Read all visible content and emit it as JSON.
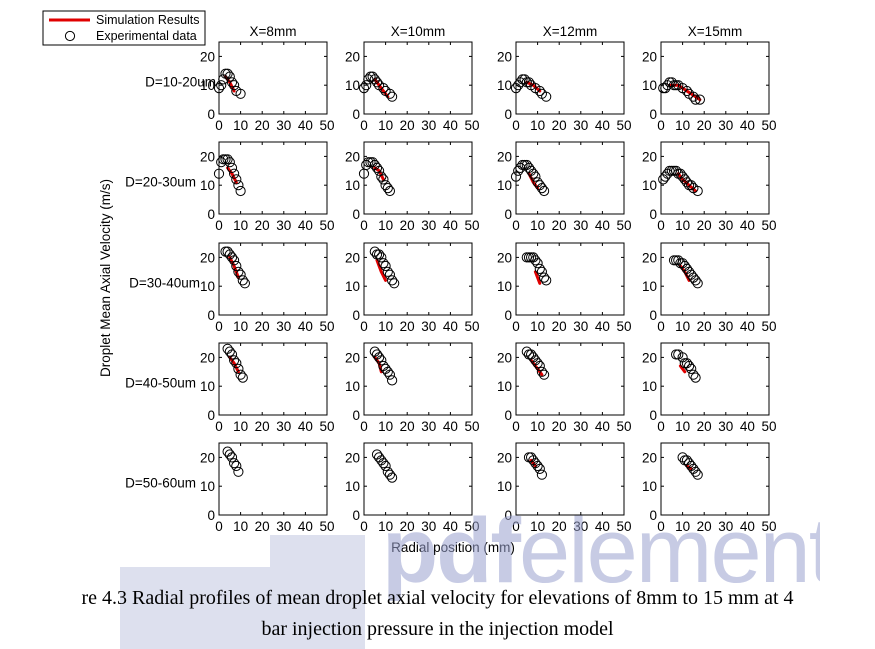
{
  "chart_data": {
    "type": "scatter",
    "title": "",
    "xlabel": "Radial position (mm)",
    "ylabel": "Droplet Mean Axial Velocity (m/s)",
    "xlim": [
      0,
      50
    ],
    "xticks": [
      0,
      10,
      20,
      30,
      40,
      50
    ],
    "column_headers": [
      "X=8mm",
      "X=10mm",
      "X=12mm",
      "X=15mm"
    ],
    "row_labels": [
      "D=10-20um",
      "D=20-30um",
      "D=30-40um",
      "D=40-50um",
      "D=50-60um"
    ],
    "ylims": [
      [
        0,
        25
      ],
      [
        0,
        25
      ],
      [
        0,
        25
      ],
      [
        0,
        25
      ],
      [
        0,
        25
      ]
    ],
    "yticks": [
      [
        0,
        10,
        20
      ],
      [
        0,
        10,
        20
      ],
      [
        0,
        10,
        20
      ],
      [
        0,
        10,
        20
      ],
      [
        0,
        10,
        20
      ]
    ],
    "legend": {
      "position": "top-left",
      "entries": [
        {
          "label": "Simulation Results",
          "style": "line",
          "color": "#e00000"
        },
        {
          "label": "Experimental data",
          "style": "circle",
          "color": "#000000"
        }
      ]
    },
    "panels": [
      [
        {
          "exp": [
            [
              0,
              9
            ],
            [
              1,
              10
            ],
            [
              2,
              12
            ],
            [
              3,
              14
            ],
            [
              4,
              14
            ],
            [
              5,
              13
            ],
            [
              6,
              11
            ],
            [
              7,
              10
            ],
            [
              8,
              8
            ],
            [
              10,
              7
            ]
          ],
          "sim": [
            [
              3,
              13
            ],
            [
              5,
              11
            ],
            [
              7,
              8
            ]
          ]
        },
        {
          "exp": [
            [
              0,
              9
            ],
            [
              1,
              10
            ],
            [
              2,
              12
            ],
            [
              3,
              13
            ],
            [
              4,
              13
            ],
            [
              5,
              12
            ],
            [
              6,
              11
            ],
            [
              7,
              10
            ],
            [
              9,
              9
            ],
            [
              10,
              8
            ],
            [
              12,
              7
            ],
            [
              13,
              6
            ]
          ],
          "sim": [
            [
              5,
              12
            ],
            [
              7,
              10
            ],
            [
              9,
              8
            ],
            [
              11,
              6
            ]
          ]
        },
        {
          "exp": [
            [
              0,
              9
            ],
            [
              1,
              10
            ],
            [
              2,
              11
            ],
            [
              3,
              12
            ],
            [
              4,
              12
            ],
            [
              5,
              11
            ],
            [
              6,
              11
            ],
            [
              7,
              10
            ],
            [
              9,
              9
            ],
            [
              11,
              8
            ],
            [
              12,
              7
            ],
            [
              14,
              6
            ]
          ],
          "sim": [
            [
              5,
              11
            ],
            [
              8,
              10
            ],
            [
              11,
              8
            ]
          ]
        },
        {
          "exp": [
            [
              1,
              9
            ],
            [
              2,
              9
            ],
            [
              3,
              10
            ],
            [
              4,
              11
            ],
            [
              5,
              11
            ],
            [
              6,
              10
            ],
            [
              7,
              10
            ],
            [
              8,
              10
            ],
            [
              10,
              9
            ],
            [
              12,
              8
            ],
            [
              13,
              7
            ],
            [
              15,
              6
            ],
            [
              16,
              5
            ],
            [
              18,
              5
            ]
          ],
          "sim": [
            [
              4,
              10
            ],
            [
              8,
              10
            ],
            [
              12,
              8
            ],
            [
              16,
              6
            ],
            [
              18,
              5
            ]
          ]
        }
      ],
      [
        {
          "exp": [
            [
              0,
              14
            ],
            [
              1,
              18
            ],
            [
              2,
              19
            ],
            [
              3,
              19
            ],
            [
              4,
              19
            ],
            [
              5,
              18
            ],
            [
              6,
              16
            ],
            [
              7,
              14
            ],
            [
              8,
              12
            ],
            [
              9,
              10
            ],
            [
              10,
              8
            ]
          ],
          "sim": [
            [
              4,
              16
            ],
            [
              6,
              14
            ],
            [
              8,
              11
            ]
          ]
        },
        {
          "exp": [
            [
              0,
              14
            ],
            [
              1,
              17
            ],
            [
              2,
              18
            ],
            [
              3,
              18
            ],
            [
              4,
              18
            ],
            [
              5,
              17
            ],
            [
              6,
              16
            ],
            [
              7,
              15
            ],
            [
              8,
              13
            ],
            [
              9,
              12
            ],
            [
              10,
              10
            ],
            [
              11,
              9
            ],
            [
              12,
              8
            ]
          ],
          "sim": [
            [
              5,
              16
            ],
            [
              7,
              15
            ],
            [
              9,
              12
            ]
          ]
        },
        {
          "exp": [
            [
              0,
              13
            ],
            [
              1,
              15
            ],
            [
              2,
              16
            ],
            [
              3,
              17
            ],
            [
              4,
              17
            ],
            [
              5,
              17
            ],
            [
              6,
              16
            ],
            [
              7,
              15
            ],
            [
              8,
              14
            ],
            [
              9,
              13
            ],
            [
              10,
              11
            ],
            [
              11,
              10
            ],
            [
              12,
              9
            ],
            [
              13,
              8
            ]
          ],
          "sim": [
            [
              6,
              14
            ],
            [
              8,
              11
            ],
            [
              10,
              9
            ]
          ]
        },
        {
          "exp": [
            [
              1,
              12
            ],
            [
              2,
              13
            ],
            [
              3,
              14
            ],
            [
              4,
              15
            ],
            [
              5,
              15
            ],
            [
              6,
              15
            ],
            [
              7,
              15
            ],
            [
              8,
              14
            ],
            [
              9,
              14
            ],
            [
              10,
              13
            ],
            [
              11,
              12
            ],
            [
              12,
              11
            ],
            [
              13,
              10
            ],
            [
              14,
              10
            ],
            [
              15,
              9
            ],
            [
              17,
              8
            ]
          ],
          "sim": [
            [
              8,
              14
            ],
            [
              10,
              12
            ],
            [
              13,
              10
            ],
            [
              16,
              8
            ]
          ]
        }
      ],
      [
        {
          "exp": [
            [
              3,
              22
            ],
            [
              4,
              22
            ],
            [
              5,
              21
            ],
            [
              6,
              20
            ],
            [
              7,
              19
            ],
            [
              8,
              17
            ],
            [
              9,
              15
            ],
            [
              10,
              14
            ],
            [
              11,
              12
            ],
            [
              12,
              11
            ]
          ],
          "sim": [
            [
              5,
              20
            ],
            [
              7,
              17
            ],
            [
              9,
              13
            ]
          ]
        },
        {
          "exp": [
            [
              5,
              22
            ],
            [
              6,
              21
            ],
            [
              7,
              21
            ],
            [
              8,
              20
            ],
            [
              9,
              18
            ],
            [
              10,
              17
            ],
            [
              11,
              15
            ],
            [
              12,
              14
            ],
            [
              13,
              12
            ],
            [
              14,
              11
            ]
          ],
          "sim": [
            [
              6,
              19
            ],
            [
              8,
              15
            ],
            [
              10,
              12
            ]
          ]
        },
        {
          "exp": [
            [
              5,
              20
            ],
            [
              6,
              20
            ],
            [
              7,
              20
            ],
            [
              8,
              20
            ],
            [
              9,
              19
            ],
            [
              10,
              18
            ],
            [
              11,
              16
            ],
            [
              12,
              15
            ],
            [
              13,
              13
            ],
            [
              14,
              12
            ]
          ],
          "sim": [
            [
              9,
              15
            ],
            [
              11,
              11
            ]
          ]
        },
        {
          "exp": [
            [
              6,
              19
            ],
            [
              7,
              19
            ],
            [
              8,
              19
            ],
            [
              9,
              18
            ],
            [
              10,
              18
            ],
            [
              11,
              17
            ],
            [
              12,
              16
            ],
            [
              13,
              15
            ],
            [
              14,
              14
            ],
            [
              15,
              13
            ],
            [
              16,
              12
            ],
            [
              17,
              11
            ]
          ],
          "sim": [
            [
              9,
              17
            ],
            [
              11,
              15
            ],
            [
              13,
              12
            ]
          ]
        }
      ],
      [
        {
          "exp": [
            [
              4,
              23
            ],
            [
              5,
              22
            ],
            [
              6,
              21
            ],
            [
              7,
              19
            ],
            [
              8,
              18
            ],
            [
              9,
              16
            ],
            [
              10,
              14
            ],
            [
              11,
              13
            ]
          ],
          "sim": [
            [
              5,
              20
            ],
            [
              7,
              18
            ],
            [
              9,
              15
            ]
          ]
        },
        {
          "exp": [
            [
              5,
              22
            ],
            [
              6,
              21
            ],
            [
              7,
              20
            ],
            [
              8,
              19
            ],
            [
              9,
              17
            ],
            [
              10,
              16
            ],
            [
              11,
              15
            ],
            [
              12,
              14
            ],
            [
              13,
              12
            ]
          ],
          "sim": [
            [
              5,
              20
            ],
            [
              7,
              18
            ],
            [
              8,
              15
            ]
          ]
        },
        {
          "exp": [
            [
              5,
              22
            ],
            [
              6,
              21
            ],
            [
              7,
              21
            ],
            [
              8,
              20
            ],
            [
              9,
              19
            ],
            [
              10,
              18
            ],
            [
              11,
              17
            ],
            [
              12,
              15
            ],
            [
              13,
              14
            ]
          ],
          "sim": [
            [
              7,
              19
            ],
            [
              10,
              16
            ],
            [
              12,
              14
            ]
          ]
        },
        {
          "exp": [
            [
              7,
              21
            ],
            [
              8,
              21
            ],
            [
              10,
              20
            ],
            [
              11,
              18
            ],
            [
              12,
              18
            ],
            [
              13,
              17
            ],
            [
              14,
              16
            ],
            [
              15,
              14
            ],
            [
              16,
              13
            ]
          ],
          "sim": [
            [
              9,
              17
            ],
            [
              11,
              15
            ]
          ]
        }
      ],
      [
        {
          "exp": [
            [
              4,
              22
            ],
            [
              5,
              21
            ],
            [
              6,
              20
            ],
            [
              7,
              18
            ],
            [
              8,
              17
            ],
            [
              9,
              15
            ]
          ],
          "sim": []
        },
        {
          "exp": [
            [
              6,
              21
            ],
            [
              7,
              20
            ],
            [
              8,
              19
            ],
            [
              9,
              18
            ],
            [
              10,
              17
            ],
            [
              11,
              15
            ],
            [
              12,
              14
            ],
            [
              13,
              13
            ]
          ],
          "sim": []
        },
        {
          "exp": [
            [
              6,
              20
            ],
            [
              7,
              20
            ],
            [
              8,
              19
            ],
            [
              9,
              18
            ],
            [
              10,
              17
            ],
            [
              11,
              16
            ],
            [
              12,
              14
            ]
          ],
          "sim": [
            [
              7,
              19
            ],
            [
              9,
              17
            ]
          ]
        },
        {
          "exp": [
            [
              10,
              20
            ],
            [
              11,
              19
            ],
            [
              12,
              19
            ],
            [
              13,
              18
            ],
            [
              14,
              17
            ],
            [
              15,
              16
            ],
            [
              16,
              15
            ],
            [
              17,
              14
            ]
          ],
          "sim": [
            [
              12,
              17
            ],
            [
              14,
              16
            ]
          ]
        }
      ]
    ]
  },
  "caption": {
    "line1": "re 4.3 Radial profiles of mean droplet axial velocity for elevations of 8mm to 15 mm at 4",
    "line2": "bar injection pressure in the injection model"
  },
  "watermark": {
    "text_bold": "pdf",
    "text_light": "element"
  }
}
